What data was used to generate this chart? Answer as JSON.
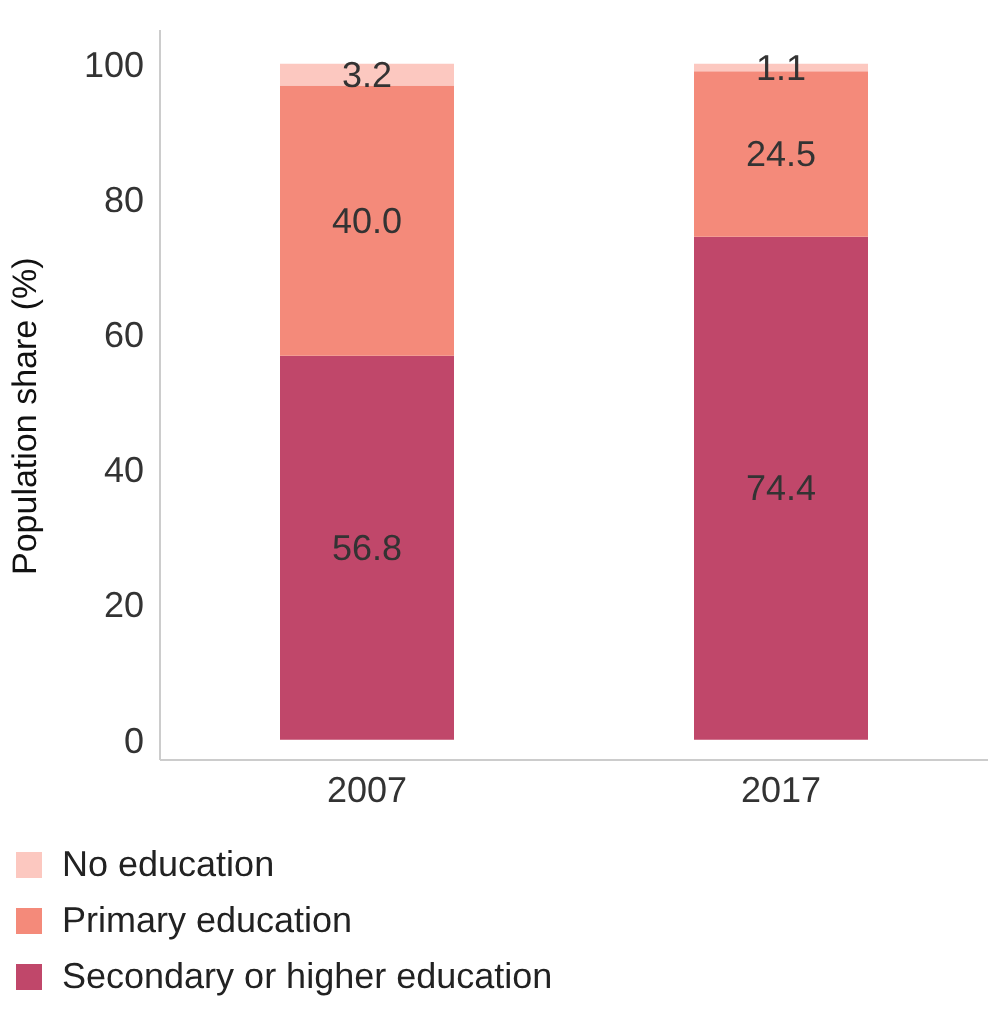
{
  "chart_data": {
    "type": "bar",
    "stacked": true,
    "ylabel": "Population share (%)",
    "categories": [
      "2007",
      "2017"
    ],
    "series": [
      {
        "name": "Secondary or higher education",
        "color": "#c0476a",
        "values": [
          56.8,
          74.4
        ],
        "value_labels": [
          "56.8",
          "74.4"
        ]
      },
      {
        "name": "Primary education",
        "color": "#f48a7a",
        "values": [
          40.0,
          24.5
        ],
        "value_labels": [
          "40.0",
          "24.5"
        ]
      },
      {
        "name": "No education",
        "color": "#fcc8c0",
        "values": [
          3.2,
          1.1
        ],
        "value_labels": [
          "3.2",
          "1.1"
        ]
      }
    ],
    "ylim": [
      -3,
      105
    ],
    "yticks": [
      0,
      20,
      40,
      60,
      80,
      100
    ],
    "grid": false,
    "legend": "bottom left"
  }
}
